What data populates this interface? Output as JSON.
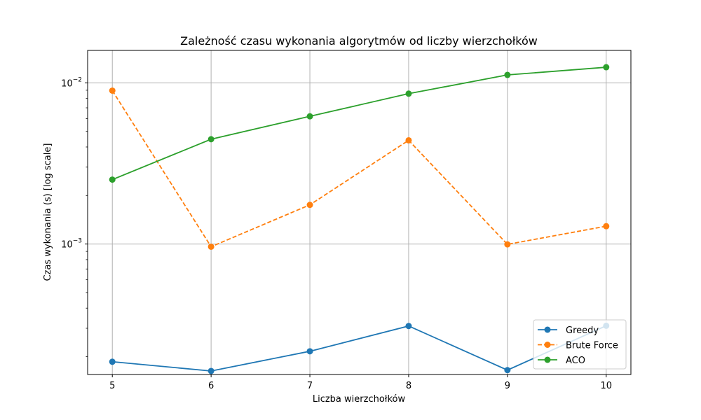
{
  "chart_data": {
    "type": "line",
    "title": "Zależność czasu wykonania algorytmów od liczby wierzchołków",
    "xlabel": "Liczba wierzchołków",
    "ylabel": "Czas wykonania (s) [log scale]",
    "yscale": "log",
    "grid": true,
    "legend_position": "lower-right",
    "x": [
      5,
      6,
      7,
      8,
      9,
      10
    ],
    "x_ticks": [
      "5",
      "6",
      "7",
      "8",
      "9",
      "10"
    ],
    "xlim": [
      4.75,
      10.25
    ],
    "ylim": [
      0.000155,
      0.0159
    ],
    "y_ticks": [
      {
        "value": 0.001,
        "base": "10",
        "exp": "−3"
      },
      {
        "value": 0.01,
        "base": "10",
        "exp": "−2"
      }
    ],
    "series": [
      {
        "name": "Greedy",
        "color": "#1f77b4",
        "dash": "solid",
        "values": [
          0.000186,
          0.000163,
          0.000216,
          0.00031,
          0.000165,
          0.000311
        ]
      },
      {
        "name": "Brute Force",
        "color": "#ff7f0e",
        "dash": "dashed",
        "values": [
          0.00895,
          0.000962,
          0.00175,
          0.0044,
          0.000995,
          0.00129
        ]
      },
      {
        "name": "ACO",
        "color": "#2ca02c",
        "dash": "solid",
        "values": [
          0.00251,
          0.00447,
          0.0062,
          0.00857,
          0.0112,
          0.0125
        ]
      }
    ]
  }
}
